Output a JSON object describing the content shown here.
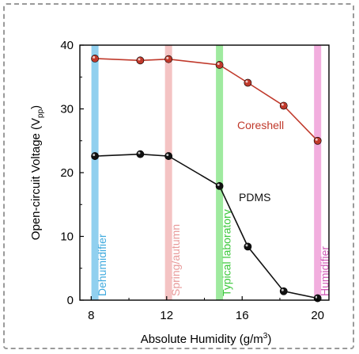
{
  "chart_data": {
    "type": "line",
    "xlabel": "Absolute Humidity (g/m",
    "xlabel_sup": "3",
    "xlabel_close": ")",
    "ylabel": "Open-circuit Voltage (V",
    "ylabel_sub": "pp",
    "ylabel_close": ")",
    "xlim": [
      7.4,
      20.6
    ],
    "ylim": [
      0,
      40
    ],
    "x_ticks": [
      8,
      12,
      16,
      20
    ],
    "y_ticks": [
      0,
      10,
      20,
      30,
      40
    ],
    "grid": false,
    "series": [
      {
        "name": "Coreshell",
        "color": "#c0392b",
        "x": [
          8.2,
          10.6,
          12.1,
          14.8,
          16.3,
          18.2,
          20.0
        ],
        "y": [
          37.9,
          37.6,
          37.8,
          36.9,
          34.1,
          30.5,
          25.0
        ]
      },
      {
        "name": "PDMS",
        "color": "#111111",
        "x": [
          8.2,
          10.6,
          12.1,
          14.8,
          16.3,
          18.2,
          20.0
        ],
        "y": [
          22.6,
          22.9,
          22.6,
          17.9,
          8.4,
          1.4,
          0.3
        ]
      }
    ],
    "bands": [
      {
        "label": "Dehumidifier",
        "x": 8.2,
        "color": "#7ec8ec",
        "text_color": "#3ea9de"
      },
      {
        "label": "Spring/autumn",
        "x": 12.1,
        "color": "#f2b8b8",
        "text_color": "#e89a9a"
      },
      {
        "label": "Typical laboratory",
        "x": 14.8,
        "color": "#8ee68e",
        "text_color": "#3cc83c"
      },
      {
        "label": "Humidifier",
        "x": 20.0,
        "color": "#f0a0d8",
        "text_color": "#d05cb8"
      }
    ]
  }
}
